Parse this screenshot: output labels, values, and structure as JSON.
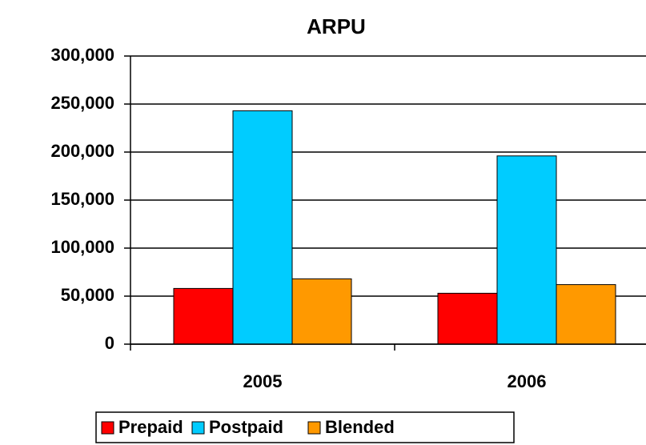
{
  "chart_data": {
    "type": "bar",
    "title": "ARPU",
    "categories": [
      "2005",
      "2006"
    ],
    "series": [
      {
        "name": "Prepaid",
        "color": "#ff0000",
        "values": [
          58000,
          53000
        ]
      },
      {
        "name": "Postpaid",
        "color": "#00ccff",
        "values": [
          243000,
          196000
        ]
      },
      {
        "name": "Blended",
        "color": "#ff9900",
        "values": [
          68000,
          62000
        ]
      }
    ],
    "ylim": [
      0,
      300000
    ],
    "yticks": [
      0,
      {
        "value": 50000,
        "label": "50,000"
      },
      {
        "value": 100000,
        "label": "100,000"
      },
      {
        "value": 150000,
        "label": "150,000"
      },
      {
        "value": 200000,
        "label": "200,000"
      },
      {
        "value": 250000,
        "label": "250,000"
      },
      {
        "value": 300000,
        "label": "300,000"
      }
    ],
    "grid": true,
    "legend": "bottom"
  }
}
